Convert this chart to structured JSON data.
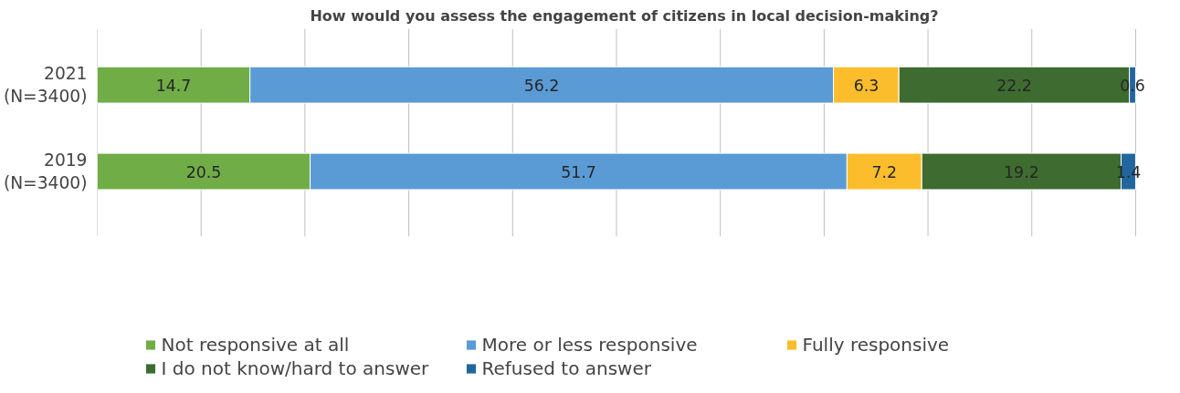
{
  "chart_data": {
    "type": "bar",
    "orientation": "horizontal",
    "stacked": true,
    "title": "How would you assess the engagement of citizens in local decision-making?",
    "categories": [
      "2021\n(N=3400)",
      "2019\n(N=3400)"
    ],
    "series": [
      {
        "name": "Not responsive at all",
        "color": "#70ad47",
        "values": [
          14.7,
          20.5
        ]
      },
      {
        "name": "More or less responsive",
        "color": "#5b9bd5",
        "values": [
          56.2,
          51.7
        ]
      },
      {
        "name": "Fully responsive",
        "color": "#fbbd2c",
        "values": [
          6.3,
          7.2
        ]
      },
      {
        "name": "I do not know/hard to answer",
        "color": "#3e6b30",
        "values": [
          22.2,
          19.2
        ]
      },
      {
        "name": "Refused to answer",
        "color": "#22669e",
        "values": [
          0.6,
          1.4
        ]
      }
    ],
    "xlim": [
      0,
      100
    ],
    "xticks": [
      {
        "value": 0,
        "label": null
      },
      {
        "value": 10,
        "label": null
      },
      {
        "value": 20,
        "label": null
      },
      {
        "value": 30,
        "label": null
      },
      {
        "value": 40,
        "label": null
      },
      {
        "value": 50,
        "label": null
      },
      {
        "value": 60,
        "label": null
      },
      {
        "value": 70,
        "label": null
      },
      {
        "value": 80,
        "label": null
      },
      {
        "value": 90,
        "label": null
      },
      {
        "value": 100,
        "label": null
      }
    ],
    "tick_labels": "y",
    "grid": "x",
    "legend": "bottom",
    "data_labels": true
  }
}
